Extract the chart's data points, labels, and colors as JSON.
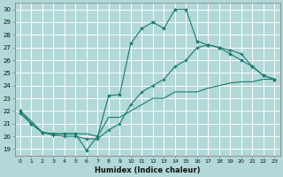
{
  "xlabel": "Humidex (Indice chaleur)",
  "background_color": "#b2d8d8",
  "grid_color": "#c8e8e8",
  "line_color": "#1a7a6e",
  "xlim": [
    -0.5,
    23.5
  ],
  "ylim": [
    18.5,
    30.5
  ],
  "yticks": [
    19,
    20,
    21,
    22,
    23,
    24,
    25,
    26,
    27,
    28,
    29,
    30
  ],
  "xticks": [
    0,
    1,
    2,
    3,
    4,
    5,
    6,
    7,
    8,
    9,
    10,
    11,
    12,
    13,
    14,
    15,
    16,
    17,
    18,
    19,
    20,
    21,
    22,
    23
  ],
  "line1_x": [
    0,
    1,
    2,
    3,
    4,
    5,
    6,
    7,
    8,
    9,
    10,
    11,
    12,
    13,
    14,
    15,
    16,
    17,
    18,
    19,
    20,
    21,
    22,
    23
  ],
  "line1_y": [
    22.0,
    21.0,
    20.3,
    20.2,
    20.2,
    20.2,
    18.9,
    20.0,
    23.2,
    23.3,
    27.3,
    28.5,
    29.0,
    28.5,
    30.0,
    30.0,
    27.5,
    27.2,
    27.0,
    26.5,
    26.0,
    25.5,
    24.8,
    24.5
  ],
  "line2_x": [
    0,
    1,
    2,
    3,
    4,
    5,
    6,
    7,
    8,
    9,
    10,
    11,
    12,
    13,
    14,
    15,
    16,
    17,
    18,
    19,
    20,
    21,
    22,
    23
  ],
  "line2_y": [
    22.0,
    21.2,
    20.3,
    20.2,
    20.2,
    20.2,
    20.2,
    20.0,
    21.5,
    21.5,
    22.0,
    22.5,
    23.0,
    23.0,
    23.5,
    23.5,
    23.5,
    23.8,
    24.0,
    24.2,
    24.3,
    24.3,
    24.5,
    24.5
  ],
  "line3_x": [
    0,
    1,
    2,
    3,
    4,
    5,
    6,
    7,
    8,
    9,
    10,
    11,
    12,
    13,
    14,
    15,
    16,
    17,
    18,
    19,
    20,
    21,
    22,
    23
  ],
  "line3_y": [
    21.8,
    21.0,
    20.3,
    20.1,
    20.0,
    20.0,
    19.8,
    19.8,
    20.5,
    21.0,
    22.5,
    23.5,
    24.0,
    24.5,
    25.5,
    26.0,
    27.0,
    27.2,
    27.0,
    26.8,
    26.5,
    25.5,
    24.8,
    24.5
  ]
}
